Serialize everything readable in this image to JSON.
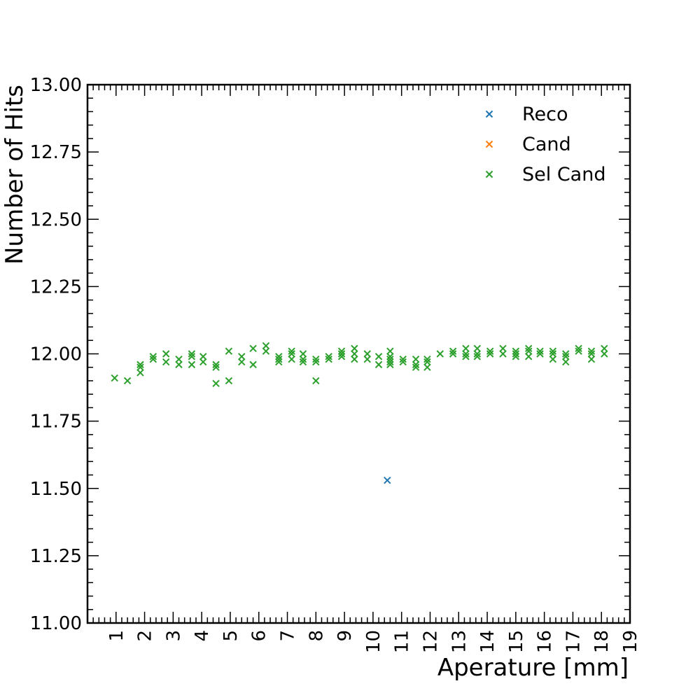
{
  "chart_data": {
    "type": "scatter",
    "xlabel": "Aperature [mm]",
    "ylabel": "Number of Hits",
    "xlim": [
      0,
      19
    ],
    "ylim": [
      11.0,
      13.0
    ],
    "y_ticks": [
      "11.00",
      "11.25",
      "11.50",
      "11.75",
      "12.00",
      "12.25",
      "12.50",
      "12.75",
      "13.00"
    ],
    "x_ticks": [
      "1",
      "2",
      "3",
      "4",
      "5",
      "6",
      "7",
      "8",
      "9",
      "10",
      "11",
      "12",
      "13",
      "14",
      "15",
      "16",
      "17",
      "18",
      "19"
    ],
    "legend_position": "top-right",
    "grid": false,
    "marker": "x",
    "series": [
      {
        "name": "Reco",
        "color": "#1f77b4",
        "points": [
          [
            10.5,
            11.53
          ]
        ]
      },
      {
        "name": "Cand",
        "color": "#ff7f0e",
        "points": []
      },
      {
        "name": "Sel Cand",
        "color": "#2ca02c",
        "points": [
          [
            0.95,
            11.91
          ],
          [
            1.4,
            11.9
          ],
          [
            1.85,
            11.93
          ],
          [
            1.85,
            11.95
          ],
          [
            1.85,
            11.96
          ],
          [
            2.3,
            11.98
          ],
          [
            2.3,
            11.99
          ],
          [
            2.75,
            11.97
          ],
          [
            2.75,
            12.0
          ],
          [
            3.2,
            11.96
          ],
          [
            3.2,
            11.98
          ],
          [
            3.65,
            11.96
          ],
          [
            3.65,
            11.99
          ],
          [
            3.65,
            12.0
          ],
          [
            4.05,
            11.97
          ],
          [
            4.05,
            11.99
          ],
          [
            4.5,
            11.89
          ],
          [
            4.5,
            11.95
          ],
          [
            4.5,
            11.96
          ],
          [
            4.95,
            11.9
          ],
          [
            4.95,
            12.01
          ],
          [
            5.4,
            11.97
          ],
          [
            5.4,
            11.99
          ],
          [
            5.8,
            11.96
          ],
          [
            5.8,
            12.02
          ],
          [
            6.25,
            12.01
          ],
          [
            6.25,
            12.03
          ],
          [
            6.7,
            11.97
          ],
          [
            6.7,
            11.98
          ],
          [
            6.7,
            11.99
          ],
          [
            7.15,
            11.98
          ],
          [
            7.15,
            12.0
          ],
          [
            7.15,
            12.01
          ],
          [
            7.55,
            11.97
          ],
          [
            7.55,
            11.98
          ],
          [
            7.55,
            12.0
          ],
          [
            8.0,
            11.9
          ],
          [
            8.0,
            11.97
          ],
          [
            8.0,
            11.98
          ],
          [
            8.45,
            11.98
          ],
          [
            8.45,
            11.99
          ],
          [
            8.9,
            11.99
          ],
          [
            8.9,
            12.0
          ],
          [
            8.9,
            12.01
          ],
          [
            9.35,
            11.98
          ],
          [
            9.35,
            12.0
          ],
          [
            9.35,
            12.02
          ],
          [
            9.8,
            11.98
          ],
          [
            9.8,
            12.0
          ],
          [
            10.2,
            11.96
          ],
          [
            10.2,
            11.99
          ],
          [
            10.6,
            11.96
          ],
          [
            10.6,
            11.97
          ],
          [
            10.6,
            11.98
          ],
          [
            10.6,
            11.99
          ],
          [
            10.6,
            12.01
          ],
          [
            11.05,
            11.97
          ],
          [
            11.05,
            11.98
          ],
          [
            11.5,
            11.95
          ],
          [
            11.5,
            11.96
          ],
          [
            11.5,
            11.98
          ],
          [
            11.9,
            11.95
          ],
          [
            11.9,
            11.97
          ],
          [
            11.9,
            11.98
          ],
          [
            12.35,
            12.0
          ],
          [
            12.8,
            12.0
          ],
          [
            12.8,
            12.01
          ],
          [
            13.25,
            11.99
          ],
          [
            13.25,
            12.0
          ],
          [
            13.25,
            12.02
          ],
          [
            13.65,
            11.99
          ],
          [
            13.65,
            12.0
          ],
          [
            13.65,
            12.02
          ],
          [
            14.1,
            12.0
          ],
          [
            14.1,
            12.01
          ],
          [
            14.55,
            12.0
          ],
          [
            14.55,
            12.02
          ],
          [
            15.0,
            11.99
          ],
          [
            15.0,
            12.0
          ],
          [
            15.0,
            12.01
          ],
          [
            15.45,
            11.99
          ],
          [
            15.45,
            12.01
          ],
          [
            15.45,
            12.02
          ],
          [
            15.85,
            12.0
          ],
          [
            15.85,
            12.01
          ],
          [
            16.3,
            11.98
          ],
          [
            16.3,
            12.0
          ],
          [
            16.3,
            12.01
          ],
          [
            16.75,
            11.97
          ],
          [
            16.75,
            11.99
          ],
          [
            16.75,
            12.0
          ],
          [
            17.2,
            12.01
          ],
          [
            17.2,
            12.02
          ],
          [
            17.65,
            11.98
          ],
          [
            17.65,
            12.0
          ],
          [
            17.65,
            12.01
          ],
          [
            18.1,
            12.0
          ],
          [
            18.1,
            12.02
          ]
        ]
      }
    ]
  }
}
